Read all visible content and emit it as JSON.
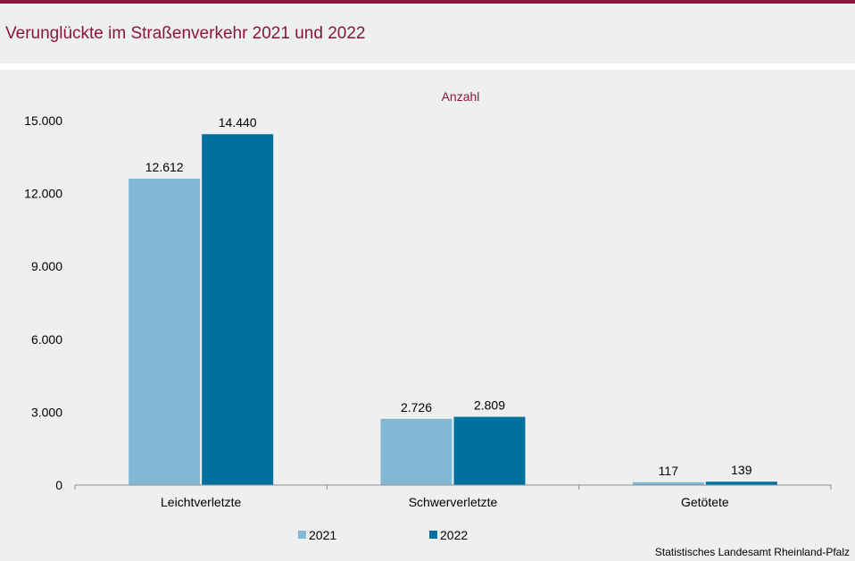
{
  "header": {
    "title": "Verunglückte im Straßenverkehr 2021 und 2022"
  },
  "footer": {
    "source": "Statistisches Landesamt Rheinland-Pfalz"
  },
  "colors": {
    "accent": "#8a1538",
    "series_2021": "#82b8d3",
    "series_2022": "#00709f"
  },
  "chart_data": {
    "type": "bar",
    "unit_label": "Anzahl",
    "categories": [
      "Leichtverletzte",
      "Schwerverletzte",
      "Getötete"
    ],
    "series": [
      {
        "name": "2021",
        "values": [
          12612,
          2726,
          117
        ],
        "labels": [
          "12.612",
          "2.726",
          "117"
        ]
      },
      {
        "name": "2022",
        "values": [
          14440,
          2809,
          139
        ],
        "labels": [
          "14.440",
          "2.809",
          "139"
        ]
      }
    ],
    "ylim": [
      0,
      15000
    ],
    "yticks": [
      0,
      3000,
      6000,
      9000,
      12000,
      15000
    ],
    "ytick_labels": [
      "0",
      "3.000",
      "6.000",
      "9.000",
      "12.000",
      "15.000"
    ],
    "grid": false,
    "legend_position": "bottom"
  }
}
